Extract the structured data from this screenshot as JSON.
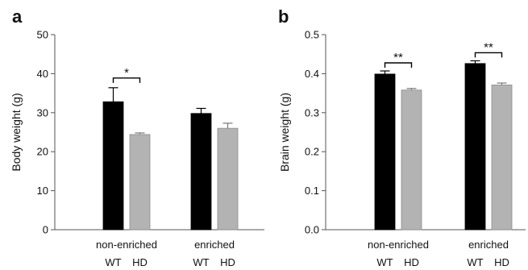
{
  "chart_data": [
    {
      "panel": "a",
      "type": "bar",
      "ylabel": "Body weight (g)",
      "ylim": [
        0,
        50
      ],
      "yticks": [
        0,
        10,
        20,
        30,
        40,
        50
      ],
      "groups": [
        "non-enriched",
        "enriched"
      ],
      "bar_labels": [
        "WT",
        "HD"
      ],
      "series": [
        {
          "name": "WT",
          "color": "#000000",
          "values": [
            32.8,
            29.8
          ],
          "errors": [
            3.6,
            1.3
          ]
        },
        {
          "name": "HD",
          "color": "#b3b3b3",
          "values": [
            24.4,
            26.0
          ],
          "errors": [
            0.4,
            1.3
          ]
        }
      ],
      "significance": [
        {
          "group": 0,
          "label": "*"
        }
      ]
    },
    {
      "panel": "b",
      "type": "bar",
      "ylabel": "Brain weight (g)",
      "ylim": [
        0,
        0.5
      ],
      "yticks": [
        "0.0",
        "0.1",
        "0.2",
        "0.3",
        "0.4",
        "0.5"
      ],
      "groups": [
        "non-enriched",
        "enriched"
      ],
      "bar_labels": [
        "WT",
        "HD"
      ],
      "series": [
        {
          "name": "WT",
          "color": "#000000",
          "values": [
            0.399,
            0.426
          ],
          "errors": [
            0.008,
            0.007
          ]
        },
        {
          "name": "HD",
          "color": "#b3b3b3",
          "values": [
            0.358,
            0.371
          ],
          "errors": [
            0.004,
            0.005
          ]
        }
      ],
      "significance": [
        {
          "group": 0,
          "label": "**"
        },
        {
          "group": 1,
          "label": "**"
        }
      ]
    }
  ]
}
